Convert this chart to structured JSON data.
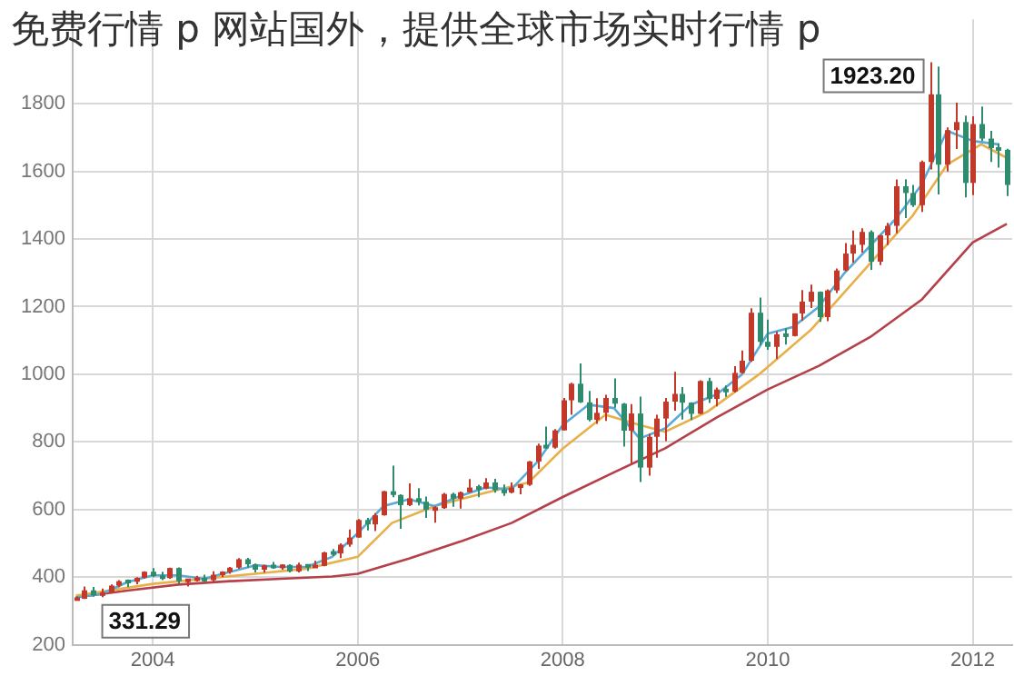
{
  "chart_data": {
    "type": "candlestick",
    "title": "免费行情 p 网站国外，提供全球市场实时行情 p",
    "x": [
      "2003-04",
      "2003-05",
      "2003-06",
      "2003-07",
      "2003-08",
      "2003-09",
      "2003-10",
      "2003-11",
      "2003-12",
      "2004-01",
      "2004-02",
      "2004-03",
      "2004-04",
      "2004-05",
      "2004-06",
      "2004-07",
      "2004-08",
      "2004-09",
      "2004-10",
      "2004-11",
      "2004-12",
      "2005-01",
      "2005-02",
      "2005-03",
      "2005-04",
      "2005-05",
      "2005-06",
      "2005-07",
      "2005-08",
      "2005-09",
      "2005-10",
      "2005-11",
      "2005-12",
      "2006-01",
      "2006-02",
      "2006-03",
      "2006-04",
      "2006-05",
      "2006-06",
      "2006-07",
      "2006-08",
      "2006-09",
      "2006-10",
      "2006-11",
      "2006-12",
      "2007-01",
      "2007-02",
      "2007-03",
      "2007-04",
      "2007-05",
      "2007-06",
      "2007-07",
      "2007-08",
      "2007-09",
      "2007-10",
      "2007-11",
      "2007-12",
      "2008-01",
      "2008-02",
      "2008-03",
      "2008-04",
      "2008-05",
      "2008-06",
      "2008-07",
      "2008-08",
      "2008-09",
      "2008-10",
      "2008-11",
      "2008-12",
      "2009-01",
      "2009-02",
      "2009-03",
      "2009-04",
      "2009-05",
      "2009-06",
      "2009-07",
      "2009-08",
      "2009-09",
      "2009-10",
      "2009-11",
      "2009-12",
      "2010-01",
      "2010-02",
      "2010-03",
      "2010-04",
      "2010-05",
      "2010-06",
      "2010-07",
      "2010-08",
      "2010-09",
      "2010-10",
      "2010-11",
      "2010-12",
      "2011-01",
      "2011-02",
      "2011-03",
      "2011-04",
      "2011-05",
      "2011-06",
      "2011-07",
      "2011-08",
      "2011-09",
      "2011-10",
      "2011-11",
      "2011-12",
      "2012-01",
      "2012-02",
      "2012-03",
      "2012-04",
      "2012-05"
    ],
    "ohlc": [
      [
        334,
        343,
        331.29,
        336
      ],
      [
        336,
        372,
        335,
        361
      ],
      [
        361,
        371,
        342,
        346
      ],
      [
        346,
        366,
        341,
        354
      ],
      [
        354,
        378,
        352,
        375
      ],
      [
        375,
        391,
        370,
        388
      ],
      [
        388,
        393,
        370,
        386
      ],
      [
        386,
        400,
        379,
        398
      ],
      [
        398,
        417,
        396,
        416
      ],
      [
        416,
        427,
        400,
        403
      ],
      [
        403,
        416,
        391,
        397
      ],
      [
        397,
        428,
        395,
        427
      ],
      [
        427,
        429,
        381,
        388
      ],
      [
        388,
        395,
        372,
        393
      ],
      [
        393,
        404,
        387,
        395
      ],
      [
        395,
        407,
        385,
        391
      ],
      [
        391,
        417,
        385,
        407
      ],
      [
        407,
        417,
        400,
        415
      ],
      [
        415,
        430,
        410,
        428
      ],
      [
        428,
        456,
        425,
        453
      ],
      [
        453,
        457,
        428,
        438
      ],
      [
        438,
        440,
        414,
        422
      ],
      [
        422,
        437,
        413,
        435
      ],
      [
        435,
        445,
        425,
        428
      ],
      [
        428,
        438,
        422,
        436
      ],
      [
        436,
        438,
        414,
        417
      ],
      [
        417,
        443,
        414,
        437
      ],
      [
        437,
        438,
        418,
        430
      ],
      [
        430,
        448,
        428,
        433
      ],
      [
        433,
        475,
        432,
        473
      ],
      [
        473,
        483,
        462,
        470
      ],
      [
        470,
        500,
        456,
        496
      ],
      [
        496,
        541,
        490,
        517
      ],
      [
        517,
        572,
        517,
        569
      ],
      [
        569,
        575,
        538,
        556
      ],
      [
        556,
        589,
        536,
        583
      ],
      [
        583,
        655,
        582,
        654
      ],
      [
        654,
        730,
        636,
        643
      ],
      [
        643,
        645,
        543,
        613
      ],
      [
        613,
        677,
        610,
        633
      ],
      [
        633,
        663,
        612,
        623
      ],
      [
        623,
        638,
        575,
        599
      ],
      [
        599,
        610,
        561,
        604
      ],
      [
        604,
        649,
        602,
        646
      ],
      [
        646,
        650,
        608,
        632
      ],
      [
        632,
        653,
        603,
        651
      ],
      [
        651,
        690,
        650,
        665
      ],
      [
        665,
        673,
        636,
        662
      ],
      [
        662,
        693,
        660,
        680
      ],
      [
        680,
        691,
        650,
        657
      ],
      [
        657,
        674,
        640,
        650
      ],
      [
        650,
        680,
        648,
        665
      ],
      [
        665,
        675,
        645,
        673
      ],
      [
        673,
        744,
        670,
        742
      ],
      [
        742,
        795,
        720,
        789
      ],
      [
        789,
        845,
        780,
        783
      ],
      [
        783,
        838,
        780,
        834
      ],
      [
        834,
        930,
        834,
        923
      ],
      [
        923,
        975,
        880,
        972
      ],
      [
        972,
        1032,
        915,
        917
      ],
      [
        917,
        951,
        861,
        865
      ],
      [
        865,
        929,
        853,
        886
      ],
      [
        886,
        939,
        862,
        930
      ],
      [
        930,
        988,
        901,
        913
      ],
      [
        913,
        915,
        786,
        833
      ],
      [
        833,
        912,
        736,
        884
      ],
      [
        884,
        934,
        681,
        724
      ],
      [
        724,
        824,
        700,
        815
      ],
      [
        815,
        880,
        753,
        869
      ],
      [
        869,
        930,
        802,
        919
      ],
      [
        919,
        1007,
        892,
        942
      ],
      [
        942,
        962,
        866,
        916
      ],
      [
        916,
        917,
        865,
        883
      ],
      [
        883,
        982,
        882,
        980
      ],
      [
        980,
        990,
        915,
        927
      ],
      [
        927,
        961,
        905,
        955
      ],
      [
        955,
        967,
        933,
        949
      ],
      [
        949,
        1024,
        946,
        1004
      ],
      [
        1004,
        1070,
        1002,
        1040
      ],
      [
        1040,
        1195,
        1037,
        1182
      ],
      [
        1182,
        1227,
        1085,
        1096
      ],
      [
        1096,
        1162,
        1072,
        1081
      ],
      [
        1081,
        1127,
        1045,
        1118
      ],
      [
        1118,
        1136,
        1088,
        1113
      ],
      [
        1113,
        1180,
        1112,
        1180
      ],
      [
        1180,
        1249,
        1158,
        1215
      ],
      [
        1215,
        1265,
        1196,
        1244
      ],
      [
        1244,
        1245,
        1155,
        1169
      ],
      [
        1169,
        1251,
        1157,
        1248
      ],
      [
        1248,
        1313,
        1240,
        1307
      ],
      [
        1307,
        1388,
        1305,
        1357
      ],
      [
        1357,
        1425,
        1330,
        1383
      ],
      [
        1383,
        1432,
        1360,
        1421
      ],
      [
        1421,
        1426,
        1309,
        1333
      ],
      [
        1333,
        1412,
        1323,
        1411
      ],
      [
        1411,
        1448,
        1382,
        1439
      ],
      [
        1439,
        1576,
        1417,
        1556
      ],
      [
        1556,
        1577,
        1462,
        1536
      ],
      [
        1536,
        1560,
        1495,
        1500
      ],
      [
        1500,
        1632,
        1480,
        1628
      ],
      [
        1628,
        1923.2,
        1606,
        1828
      ],
      [
        1828,
        1910,
        1532,
        1620
      ],
      [
        1620,
        1730,
        1600,
        1722
      ],
      [
        1722,
        1803,
        1666,
        1746
      ],
      [
        1746,
        1765,
        1523,
        1566
      ],
      [
        1566,
        1763,
        1530,
        1740
      ],
      [
        1740,
        1792,
        1690,
        1697
      ],
      [
        1697,
        1720,
        1628,
        1669
      ],
      [
        1669,
        1683,
        1611,
        1664
      ],
      [
        1664,
        1667,
        1527,
        1560
      ]
    ],
    "colors": [
      "#c0392b",
      "#c0392b",
      "#2e8b6e",
      "#c0392b",
      "#c0392b",
      "#c0392b",
      "#2e8b6e",
      "#c0392b",
      "#c0392b",
      "#2e8b6e",
      "#2e8b6e",
      "#c0392b",
      "#2e8b6e",
      "#c0392b",
      "#c0392b",
      "#2e8b6e",
      "#c0392b",
      "#c0392b",
      "#c0392b",
      "#c0392b",
      "#2e8b6e",
      "#2e8b6e",
      "#c0392b",
      "#2e8b6e",
      "#c0392b",
      "#2e8b6e",
      "#c0392b",
      "#2e8b6e",
      "#c0392b",
      "#c0392b",
      "#2e8b6e",
      "#c0392b",
      "#c0392b",
      "#c0392b",
      "#2e8b6e",
      "#c0392b",
      "#c0392b",
      "#2e8b6e",
      "#2e8b6e",
      "#c0392b",
      "#2e8b6e",
      "#2e8b6e",
      "#c0392b",
      "#c0392b",
      "#2e8b6e",
      "#c0392b",
      "#c0392b",
      "#2e8b6e",
      "#c0392b",
      "#2e8b6e",
      "#2e8b6e",
      "#c0392b",
      "#c0392b",
      "#c0392b",
      "#c0392b",
      "#2e8b6e",
      "#c0392b",
      "#c0392b",
      "#c0392b",
      "#2e8b6e",
      "#2e8b6e",
      "#c0392b",
      "#c0392b",
      "#2e8b6e",
      "#2e8b6e",
      "#c0392b",
      "#2e8b6e",
      "#c0392b",
      "#c0392b",
      "#c0392b",
      "#c0392b",
      "#2e8b6e",
      "#2e8b6e",
      "#c0392b",
      "#2e8b6e",
      "#c0392b",
      "#2e8b6e",
      "#c0392b",
      "#c0392b",
      "#c0392b",
      "#2e8b6e",
      "#2e8b6e",
      "#c0392b",
      "#2e8b6e",
      "#c0392b",
      "#c0392b",
      "#c0392b",
      "#2e8b6e",
      "#c0392b",
      "#c0392b",
      "#c0392b",
      "#c0392b",
      "#c0392b",
      "#2e8b6e",
      "#c0392b",
      "#c0392b",
      "#c0392b",
      "#2e8b6e",
      "#2e8b6e",
      "#c0392b",
      "#c0392b",
      "#2e8b6e",
      "#c0392b",
      "#c0392b",
      "#2e8b6e",
      "#c0392b",
      "#2e8b6e",
      "#2e8b6e",
      "#2e8b6e",
      "#2e8b6e"
    ],
    "series": [
      {
        "type": "line",
        "color": "#5aa9d6",
        "x": [
          "2003-04",
          "2003-07",
          "2003-10",
          "2004-01",
          "2004-04",
          "2004-07",
          "2004-10",
          "2005-01",
          "2005-04",
          "2005-07",
          "2005-10",
          "2006-01",
          "2006-04",
          "2006-07",
          "2006-10",
          "2007-01",
          "2007-04",
          "2007-07",
          "2007-10",
          "2008-01",
          "2008-04",
          "2008-07",
          "2008-10",
          "2009-01",
          "2009-04",
          "2009-07",
          "2009-10",
          "2010-01",
          "2010-04",
          "2010-07",
          "2010-10",
          "2011-01",
          "2011-04",
          "2011-07",
          "2011-10",
          "2012-01",
          "2012-04"
        ],
        "values": [
          340,
          350,
          385,
          405,
          405,
          395,
          415,
          435,
          430,
          430,
          460,
          530,
          610,
          630,
          610,
          640,
          665,
          660,
          740,
          850,
          910,
          900,
          810,
          840,
          910,
          940,
          1000,
          1120,
          1140,
          1200,
          1300,
          1380,
          1460,
          1560,
          1720,
          1690,
          1680
        ]
      },
      {
        "type": "line",
        "color": "#e8b04a",
        "x": [
          "2003-04",
          "2004-01",
          "2004-07",
          "2005-01",
          "2005-07",
          "2006-01",
          "2006-05",
          "2006-10",
          "2007-04",
          "2007-09",
          "2008-01",
          "2008-06",
          "2008-10",
          "2009-01",
          "2009-06",
          "2009-12",
          "2010-06",
          "2010-12",
          "2011-06",
          "2011-10",
          "2012-02",
          "2012-05"
        ],
        "values": [
          345,
          380,
          395,
          410,
          425,
          460,
          560,
          610,
          650,
          680,
          780,
          880,
          850,
          830,
          890,
          1000,
          1130,
          1300,
          1470,
          1620,
          1680,
          1640
        ]
      },
      {
        "type": "line",
        "color": "#b5404a",
        "x": [
          "2003-04",
          "2003-10",
          "2004-04",
          "2004-10",
          "2005-04",
          "2005-10",
          "2006-01",
          "2006-07",
          "2007-01",
          "2007-07",
          "2008-01",
          "2008-07",
          "2009-01",
          "2009-07",
          "2010-01",
          "2010-07",
          "2011-01",
          "2011-07",
          "2012-01",
          "2012-05"
        ],
        "values": [
          340,
          360,
          378,
          388,
          395,
          402,
          410,
          455,
          505,
          560,
          637,
          710,
          781,
          872,
          955,
          1025,
          1110,
          1220,
          1390,
          1445
        ]
      }
    ],
    "annotations": [
      {
        "text": "1923.20",
        "x": "2011-08",
        "y": 1923.2
      },
      {
        "text": "331.29",
        "x": "2003-04",
        "y": 331.29
      }
    ],
    "xlim": [
      "2003-03-20",
      "2012-05-20"
    ],
    "xticks": [
      "2004",
      "2006",
      "2008",
      "2010",
      "2012"
    ],
    "ylim": [
      200,
      2050
    ],
    "yticks": [
      200,
      400,
      600,
      800,
      1000,
      1200,
      1400,
      1600,
      1800
    ],
    "grid": true
  }
}
